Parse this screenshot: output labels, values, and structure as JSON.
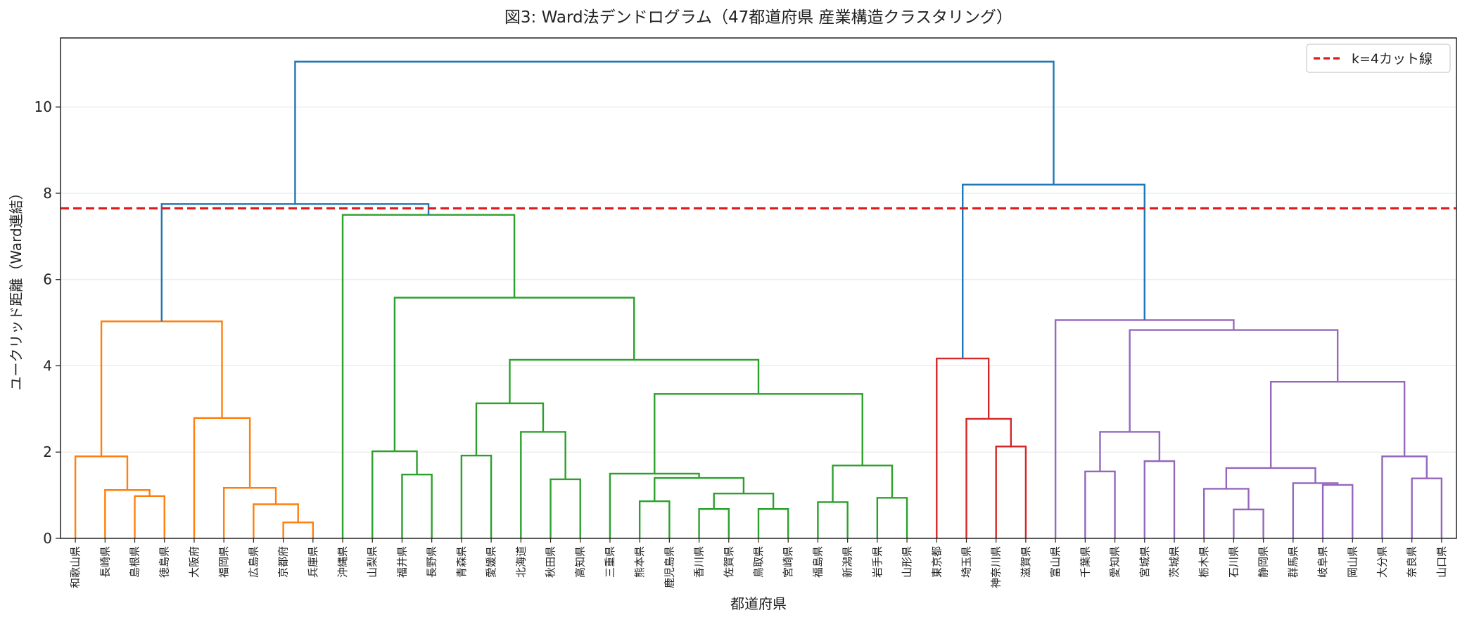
{
  "chart_data": {
    "type": "dendrogram",
    "title": "図3: Ward法デンドログラム（47都道府県 産業構造クラスタリング）",
    "xlabel": "都道府県",
    "ylabel": "ユークリッド距離（Ward連結）",
    "ylim": [
      0,
      11.6
    ],
    "yticks": [
      0,
      2,
      4,
      6,
      8,
      10
    ],
    "grid": "horizontal",
    "legend": {
      "position": "top-right",
      "label": "k=4カット線"
    },
    "cut_line": {
      "y": 7.65,
      "color": "#e31a1c",
      "style": "dashed"
    },
    "colors": {
      "above_cut": "#1f77b4",
      "cluster1": "#ff7f0e",
      "cluster2": "#2ca02c",
      "cluster3": "#d62728",
      "cluster4": "#9467bd",
      "cut_line": "#e31a1c",
      "grid": "#e6e6e6"
    },
    "leaves": [
      "和歌山県",
      "長崎県",
      "島根県",
      "徳島県",
      "大阪府",
      "福岡県",
      "広島県",
      "京都府",
      "兵庫県",
      "沖縄県",
      "山梨県",
      "福井県",
      "長野県",
      "青森県",
      "愛媛県",
      "北海道",
      "秋田県",
      "高知県",
      "三重県",
      "熊本県",
      "鹿児島県",
      "香川県",
      "佐賀県",
      "鳥取県",
      "宮崎県",
      "福島県",
      "新潟県",
      "岩手県",
      "山形県",
      "東京都",
      "埼玉県",
      "神奈川県",
      "滋賀県",
      "富山県",
      "千葉県",
      "愛知県",
      "宮城県",
      "茨城県",
      "栃木県",
      "石川県",
      "静岡県",
      "群馬県",
      "岐阜県",
      "岡山県",
      "大分県",
      "奈良県",
      "山口県"
    ],
    "merges": [
      {
        "left": "L2",
        "right": "L3",
        "height": 0.98,
        "color": "cluster1"
      },
      {
        "left": "L1",
        "right": "C0",
        "height": 1.12,
        "color": "cluster1"
      },
      {
        "left": "L0",
        "right": "C1",
        "height": 1.9,
        "color": "cluster1"
      },
      {
        "left": "L7",
        "right": "L8",
        "height": 0.37,
        "color": "cluster1"
      },
      {
        "left": "L6",
        "right": "C3",
        "height": 0.79,
        "color": "cluster1"
      },
      {
        "left": "L5",
        "right": "C4",
        "height": 1.17,
        "color": "cluster1"
      },
      {
        "left": "L4",
        "right": "C5",
        "height": 2.79,
        "color": "cluster1"
      },
      {
        "left": "C2",
        "right": "C6",
        "height": 5.03,
        "color": "cluster1"
      },
      {
        "left": "L11",
        "right": "L12",
        "height": 1.48,
        "color": "cluster2"
      },
      {
        "left": "L10",
        "right": "C8",
        "height": 2.02,
        "color": "cluster2"
      },
      {
        "left": "L13",
        "right": "L14",
        "height": 1.92,
        "color": "cluster2"
      },
      {
        "left": "L16",
        "right": "L17",
        "height": 1.37,
        "color": "cluster2"
      },
      {
        "left": "L15",
        "right": "C11",
        "height": 2.47,
        "color": "cluster2"
      },
      {
        "left": "C10",
        "right": "C12",
        "height": 3.13,
        "color": "cluster2"
      },
      {
        "left": "L19",
        "right": "L20",
        "height": 0.86,
        "color": "cluster2"
      },
      {
        "left": "L21",
        "right": "L22",
        "height": 0.68,
        "color": "cluster2"
      },
      {
        "left": "L23",
        "right": "L24",
        "height": 0.68,
        "color": "cluster2"
      },
      {
        "left": "C15",
        "right": "C16",
        "height": 1.04,
        "color": "cluster2"
      },
      {
        "left": "C14",
        "right": "C17",
        "height": 1.4,
        "color": "cluster2"
      },
      {
        "left": "L18",
        "right": "C18",
        "height": 1.5,
        "color": "cluster2"
      },
      {
        "left": "L25",
        "right": "L26",
        "height": 0.84,
        "color": "cluster2"
      },
      {
        "left": "L27",
        "right": "L28",
        "height": 0.94,
        "color": "cluster2"
      },
      {
        "left": "C20",
        "right": "C21",
        "height": 1.69,
        "color": "cluster2"
      },
      {
        "left": "C19",
        "right": "C22",
        "height": 3.35,
        "color": "cluster2"
      },
      {
        "left": "C13",
        "right": "C23",
        "height": 4.14,
        "color": "cluster2"
      },
      {
        "left": "C9",
        "right": "C24",
        "height": 5.58,
        "color": "cluster2"
      },
      {
        "left": "L9",
        "right": "C25",
        "height": 7.5,
        "color": "cluster2"
      },
      {
        "left": "C7",
        "right": "C26",
        "height": 7.75,
        "color": "above_cut"
      },
      {
        "left": "L31",
        "right": "L32",
        "height": 2.13,
        "color": "cluster3"
      },
      {
        "left": "L30",
        "right": "C28",
        "height": 2.77,
        "color": "cluster3"
      },
      {
        "left": "L29",
        "right": "C29",
        "height": 4.17,
        "color": "cluster3"
      },
      {
        "left": "L34",
        "right": "L35",
        "height": 1.55,
        "color": "cluster4"
      },
      {
        "left": "L36",
        "right": "L37",
        "height": 1.79,
        "color": "cluster4"
      },
      {
        "left": "C31",
        "right": "C32",
        "height": 2.47,
        "color": "cluster4"
      },
      {
        "left": "L39",
        "right": "L40",
        "height": 0.67,
        "color": "cluster4"
      },
      {
        "left": "L38",
        "right": "C34",
        "height": 1.15,
        "color": "cluster4"
      },
      {
        "left": "L42",
        "right": "L43",
        "height": 1.24,
        "color": "cluster4"
      },
      {
        "left": "L41",
        "right": "C36",
        "height": 1.28,
        "color": "cluster4"
      },
      {
        "left": "C35",
        "right": "C37",
        "height": 1.63,
        "color": "cluster4"
      },
      {
        "left": "L45",
        "right": "L46",
        "height": 1.39,
        "color": "cluster4"
      },
      {
        "left": "L44",
        "right": "C39",
        "height": 1.9,
        "color": "cluster4"
      },
      {
        "left": "C38",
        "right": "C40",
        "height": 3.63,
        "color": "cluster4"
      },
      {
        "left": "C33",
        "right": "C41",
        "height": 4.83,
        "color": "cluster4"
      },
      {
        "left": "L33",
        "right": "C42",
        "height": 5.06,
        "color": "cluster4"
      },
      {
        "left": "C30",
        "right": "C43",
        "height": 8.2,
        "color": "above_cut"
      },
      {
        "left": "C27",
        "right": "C44",
        "height": 11.05,
        "color": "above_cut"
      }
    ]
  }
}
